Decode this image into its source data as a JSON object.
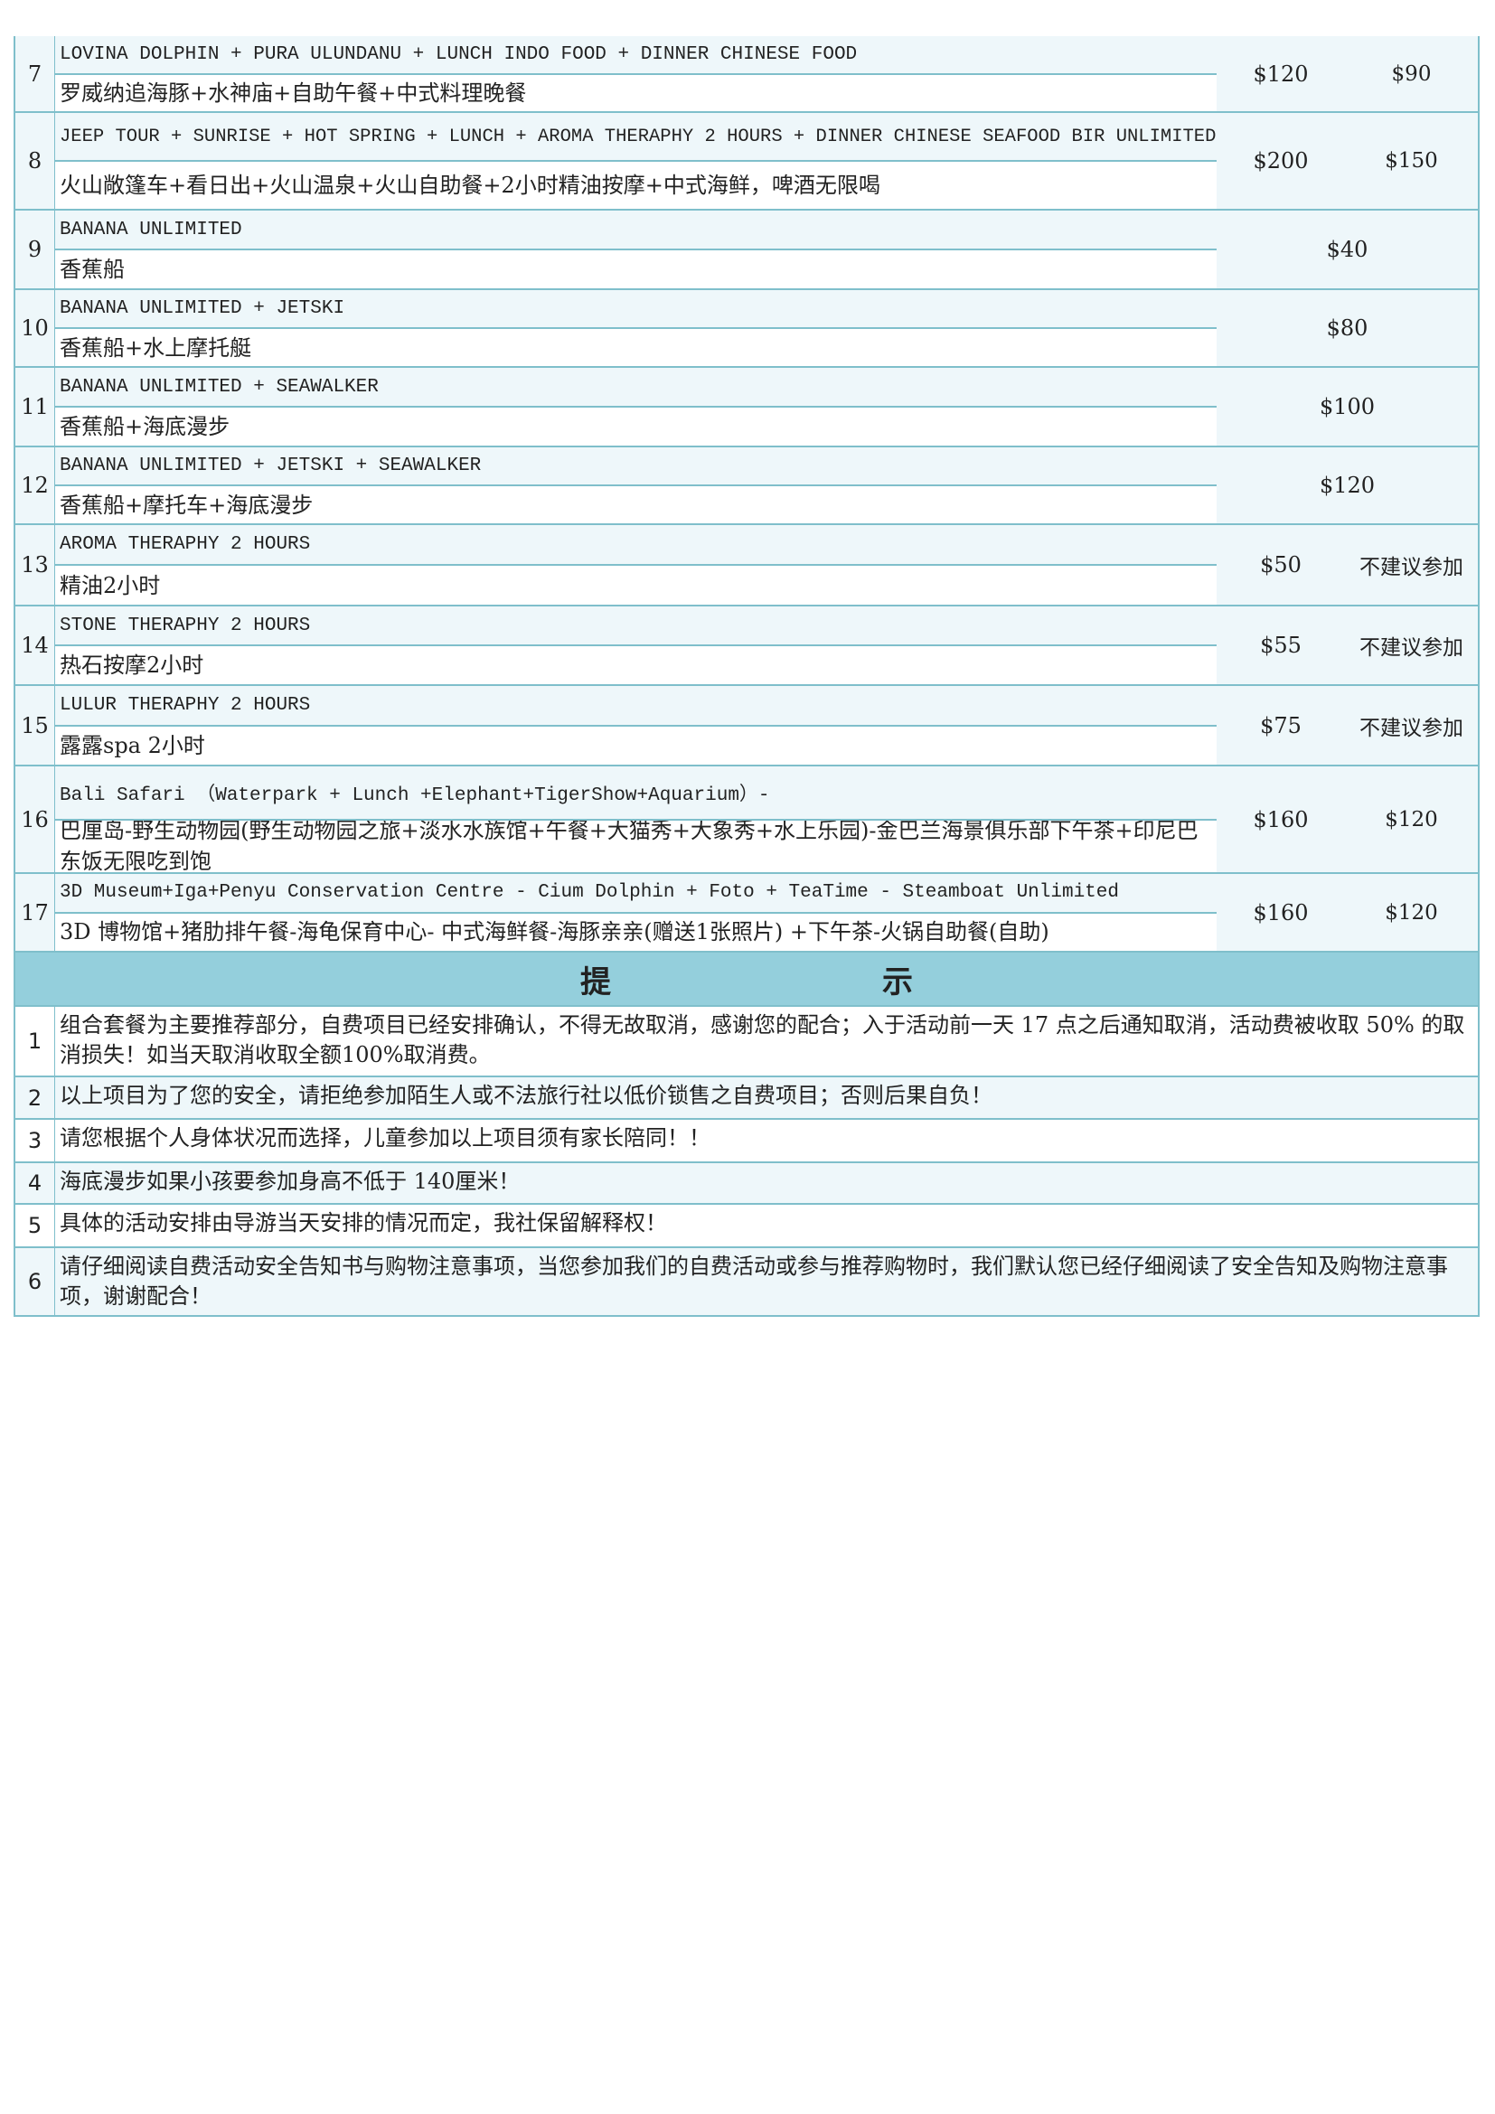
{
  "activities": [
    {
      "no": "7",
      "en": "LOVINA DOLPHIN + PURA ULUNDANU + LUNCH INDO FOOD + DINNER CHINESE FOOD",
      "cn": "罗威纳追海豚+水神庙+自助午餐+中式料理晚餐",
      "price_1": "$120",
      "price_2": "$90"
    },
    {
      "no": "8",
      "en": "JEEP TOUR + SUNRISE + HOT SPRING + LUNCH + AROMA THERAPHY 2 HOURS + DINNER CHINESE SEAFOOD BIR UNLIMITED",
      "cn": "火山敞篷车+看日出+火山温泉+火山自助餐+2小时精油按摩+中式海鲜，啤酒无限喝",
      "price_1": "$200",
      "price_2": "$150"
    },
    {
      "no": "9",
      "en": "BANANA UNLIMITED",
      "cn": "香蕉船",
      "price": "$40"
    },
    {
      "no": "10",
      "en": "BANANA UNLIMITED + JETSKI",
      "cn": "香蕉船+水上摩托艇",
      "price": "$80"
    },
    {
      "no": "11",
      "en": "BANANA UNLIMITED + SEAWALKER",
      "cn": "香蕉船+海底漫步",
      "price": "$100"
    },
    {
      "no": "12",
      "en": "BANANA UNLIMITED + JETSKI + SEAWALKER",
      "cn": "香蕉船+摩托车+海底漫步",
      "price": "$120"
    },
    {
      "no": "13",
      "en": "AROMA THERAPHY 2 HOURS",
      "cn": "精油2小时",
      "price_1": "$50",
      "price_2": "不建议参加"
    },
    {
      "no": "14",
      "en": "STONE THERAPHY 2 HOURS",
      "cn": "热石按摩2小时",
      "price_1": "$55",
      "price_2": "不建议参加"
    },
    {
      "no": "15",
      "en": "LULUR THERAPHY 2 HOURS",
      "cn": "露露spa 2小时",
      "price_1": "$75",
      "price_2": "不建议参加"
    },
    {
      "no": "16",
      "en": "Bali Safari （Waterpark + Lunch +Elephant+TigerShow+Aquarium）-",
      "cn": "巴厘岛-野生动物园(野生动物园之旅+淡水水族馆+午餐+大猫秀+大象秀+水上乐园)-金巴兰海景俱乐部下午茶+印尼巴东饭无限吃到饱",
      "price_1": "$160",
      "price_2": "$120"
    },
    {
      "no": "17",
      "en": "3D Museum+Iga+Penyu Conservation Centre - Cium Dolphin + Foto + TeaTime - Steamboat Unlimited",
      "cn": "3D 博物馆+猪肋排午餐-海龟保育中心- 中式海鲜餐-海豚亲亲(赠送1张照片) +下午茶-火锅自助餐(自助)",
      "price_1": "$160",
      "price_2": "$120"
    }
  ],
  "tips": {
    "title": "提示",
    "items": [
      {
        "no": "1",
        "text": "组合套餐为主要推荐部分，自费项目已经安排确认，不得无故取消，感谢您的配合；入于活动前一天 17 点之后通知取消，活动费被收取 50% 的取消损失！如当天取消收取全额100%取消费。"
      },
      {
        "no": "2",
        "text": "以上项目为了您的安全，请拒绝参加陌生人或不法旅行社以低价锁售之自费项目；否则后果自负！"
      },
      {
        "no": "3",
        "text": "请您根据个人身体状况而选择，儿童参加以上项目须有家长陪同！！"
      },
      {
        "no": "4",
        "text": "海底漫步如果小孩要参加身高不低于 140厘米！"
      },
      {
        "no": "5",
        "text": "具体的活动安排由导游当天安排的情况而定，我社保留解释权！"
      },
      {
        "no": "6",
        "text": "请仔细阅读自费活动安全告知书与购物注意事项，当您参加我们的自费活动或参与推荐购物时，我们默认您已经仔细阅读了安全告知及购物注意事项，谢谢配合！"
      }
    ]
  }
}
